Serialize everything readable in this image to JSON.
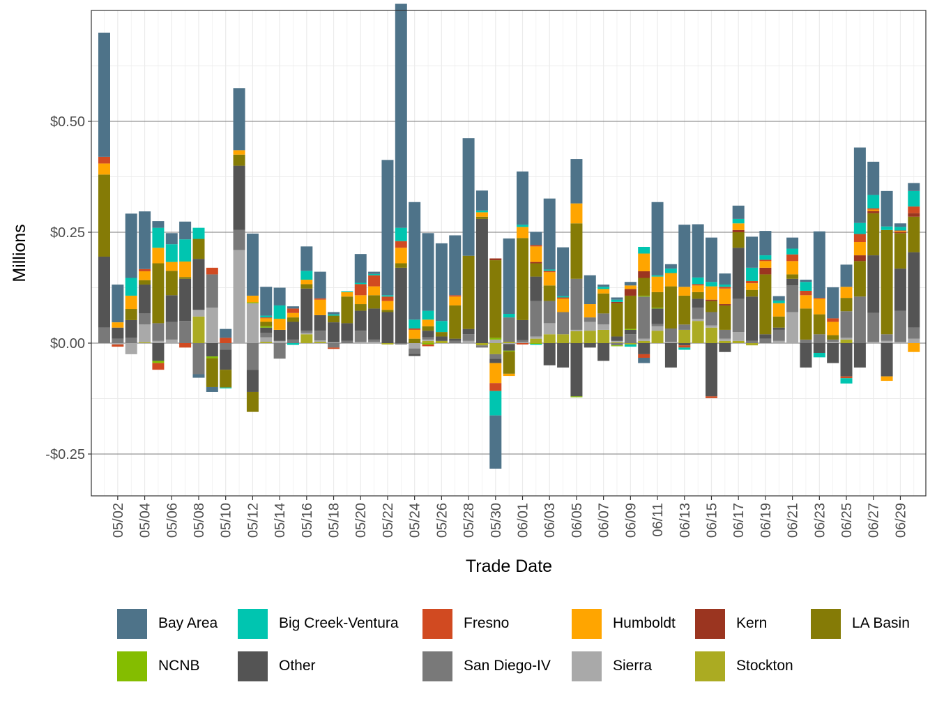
{
  "chart_data": {
    "type": "bar",
    "stacked": true,
    "title": "",
    "xlabel": "Trade Date",
    "ylabel": "Millions",
    "ylim": [
      -0.34,
      0.75
    ],
    "yticks": [
      -0.25,
      0.0,
      0.25,
      0.5
    ],
    "ytick_labels": [
      "-$0.25",
      "$0.00",
      "$0.25",
      "$0.50"
    ],
    "grid": true,
    "legend_position": "bottom",
    "xtick_labels": [
      "05/02",
      "05/04",
      "05/06",
      "05/08",
      "05/10",
      "05/12",
      "05/14",
      "05/16",
      "05/18",
      "05/20",
      "05/22",
      "05/24",
      "05/26",
      "05/28",
      "05/30",
      "06/01",
      "06/03",
      "06/05",
      "06/07",
      "06/09",
      "06/11",
      "06/13",
      "06/15",
      "06/17",
      "06/19",
      "06/21",
      "06/23",
      "06/25",
      "06/27",
      "06/29"
    ],
    "categories": [
      "05/01",
      "05/02",
      "05/03",
      "05/04",
      "05/05",
      "05/06",
      "05/07",
      "05/08",
      "05/09",
      "05/10",
      "05/11",
      "05/12",
      "05/13",
      "05/14",
      "05/15",
      "05/16",
      "05/17",
      "05/18",
      "05/19",
      "05/20",
      "05/21",
      "05/22",
      "05/23",
      "05/24",
      "05/25",
      "05/26",
      "05/27",
      "05/28",
      "05/29",
      "05/30",
      "05/31",
      "06/01",
      "06/02",
      "06/03",
      "06/04",
      "06/05",
      "06/06",
      "06/07",
      "06/08",
      "06/09",
      "06/10",
      "06/11",
      "06/12",
      "06/13",
      "06/14",
      "06/15",
      "06/16",
      "06/17",
      "06/18",
      "06/19",
      "06/20",
      "06/21",
      "06/22",
      "06/23",
      "06/24",
      "06/25",
      "06/26",
      "06/27",
      "06/28",
      "06/29",
      "06/30"
    ],
    "series": [
      {
        "name": "Bay Area",
        "color": "#4E7389",
        "values": [
          0.28,
          0.085,
          0.145,
          0.13,
          0.015,
          0.025,
          0.04,
          -0.008,
          -0.011,
          0.02,
          0.14,
          0.14,
          0.065,
          0.04,
          0.005,
          0.055,
          0.06,
          0.005,
          0,
          0.065,
          0.005,
          0.305,
          0.505,
          0.265,
          0.175,
          0.175,
          0.135,
          0.265,
          0.045,
          -0.12,
          0.17,
          0.12,
          0.03,
          0.16,
          0.11,
          0.1,
          0.065,
          0.005,
          0.005,
          0.008,
          -0.012,
          0.165,
          0.01,
          0.14,
          0.12,
          0.1,
          0.025,
          0.03,
          0.07,
          0.055,
          0.01,
          0.025,
          0.005,
          0.15,
          0.07,
          0.05,
          0.17,
          0.075,
          0.08,
          0.008,
          0.018
        ]
      },
      {
        "name": "Big Creek-Ventura",
        "color": "#00C5B0",
        "values": [
          0,
          0,
          0.04,
          0,
          0.045,
          0.04,
          0.05,
          0.025,
          0,
          -0.002,
          0,
          0,
          0.004,
          0.03,
          -0.004,
          0.02,
          0,
          0.003,
          0.002,
          0.003,
          0.003,
          0.003,
          0.03,
          0.02,
          0.02,
          0.025,
          0,
          0,
          0.004,
          -0.055,
          0.008,
          0.005,
          -0.002,
          0.003,
          0.003,
          0,
          0,
          0.005,
          0.005,
          -0.005,
          0.015,
          0.003,
          0.01,
          -0.005,
          0.015,
          0.01,
          0.005,
          0.01,
          0.03,
          0.01,
          0.006,
          0.013,
          0.02,
          -0.01,
          0,
          -0.012,
          0.025,
          0.03,
          0.008,
          0.008,
          0.035
        ]
      },
      {
        "name": "Fresno",
        "color": "#D14A21",
        "values": [
          0.015,
          -0.005,
          0,
          0.005,
          -0.015,
          0,
          -0.01,
          0,
          0.015,
          0.012,
          0,
          0,
          0.002,
          0,
          0.01,
          0,
          0.003,
          -0.003,
          0,
          0.025,
          0.025,
          0.01,
          0.015,
          0.003,
          -0.004,
          0,
          0.003,
          0,
          0,
          -0.018,
          0,
          -0.003,
          0.003,
          0.003,
          0.003,
          0,
          0,
          0,
          0,
          0,
          -0.008,
          0,
          0,
          -0.005,
          0.003,
          -0.004,
          0.004,
          0,
          0.005,
          0.003,
          0,
          0.015,
          0.01,
          0.002,
          0.008,
          -0.004,
          0.018,
          0.003,
          0,
          0.002,
          0.015
        ]
      },
      {
        "name": "Humboldt",
        "color": "#FFA500",
        "values": [
          0.025,
          0.012,
          0.03,
          0.02,
          0.035,
          0.02,
          0.035,
          0,
          0,
          0,
          0.01,
          0.015,
          0.008,
          0.025,
          0.01,
          0.01,
          0.035,
          0,
          0.01,
          0.02,
          0.02,
          0.02,
          0.035,
          0.02,
          0.015,
          0,
          0.02,
          0,
          0.01,
          -0.045,
          -0.005,
          0.025,
          0.035,
          0.03,
          0.03,
          0.045,
          0.03,
          0.01,
          0,
          0.008,
          0.04,
          0.035,
          0.03,
          0.02,
          0.015,
          0.03,
          0.035,
          0.015,
          0.015,
          0.015,
          0.03,
          0.03,
          0.03,
          0.035,
          0.03,
          0.025,
          0.03,
          0.003,
          -0.01,
          0.002,
          -0.02
        ]
      },
      {
        "name": "Kern",
        "color": "#9B3520",
        "values": [
          0,
          0,
          0,
          0,
          0,
          0,
          0,
          0,
          0,
          0,
          0,
          0,
          0,
          0,
          0,
          0,
          0,
          0,
          0,
          0,
          0,
          0,
          0,
          0,
          0,
          0,
          0,
          0,
          0,
          0.004,
          0,
          0,
          0.003,
          0,
          0,
          0,
          0,
          0,
          0.003,
          0.015,
          0.015,
          0,
          0,
          0,
          0,
          0.003,
          0.003,
          0.005,
          0,
          0.015,
          0,
          0,
          0,
          0,
          0,
          0,
          0.013,
          0.005,
          0,
          0.002,
          0.008
        ]
      },
      {
        "name": "LA Basin",
        "color": "#857B06",
        "values": [
          0.185,
          0,
          0.025,
          0.01,
          0.135,
          0.055,
          0.004,
          0.045,
          -0.065,
          -0.04,
          0.025,
          -0.045,
          0.01,
          0,
          0.01,
          0.01,
          0,
          0.015,
          0.06,
          0.015,
          0.03,
          0.005,
          0.01,
          0.01,
          0.01,
          0.01,
          0.075,
          0.165,
          0.005,
          0.175,
          -0.05,
          0.185,
          0.03,
          0.035,
          0,
          0.125,
          0,
          0.045,
          0.075,
          0.075,
          0.04,
          0.035,
          0.095,
          0.065,
          0.015,
          0.025,
          0.055,
          0.035,
          0.015,
          0.135,
          0.025,
          0.01,
          0.07,
          0.045,
          0.01,
          0.03,
          0.08,
          0.095,
          0.235,
          0.08,
          0.08
        ]
      },
      {
        "name": "NCNB",
        "color": "#84BD00",
        "values": [
          0,
          0,
          0,
          0,
          -0.005,
          0,
          0,
          0,
          -0.004,
          0,
          0,
          0.002,
          0.003,
          0,
          0,
          0,
          0,
          0,
          0,
          0,
          0,
          0,
          0,
          0,
          -0.003,
          0,
          0,
          0,
          0,
          0.004,
          -0.002,
          0,
          -0.002,
          0,
          0,
          -0.002,
          0,
          0,
          -0.002,
          0.002,
          0.002,
          0.002,
          0,
          0,
          0,
          0,
          0,
          0,
          0,
          0,
          0,
          0,
          0,
          0,
          0,
          0,
          0,
          0,
          0,
          0,
          0
        ]
      },
      {
        "name": "Other",
        "color": "#545454",
        "values": [
          0.16,
          0.025,
          0.04,
          0.065,
          -0.04,
          0.06,
          0.095,
          0.115,
          -0.03,
          -0.045,
          0.145,
          -0.05,
          0.012,
          0.025,
          0.04,
          0.095,
          0.035,
          0.045,
          0.04,
          0.045,
          0.07,
          0.07,
          0.17,
          -0.005,
          0.015,
          0.01,
          0.005,
          0.012,
          0.28,
          -0.01,
          -0.015,
          0.045,
          0.055,
          -0.05,
          -0.055,
          -0.12,
          -0.01,
          -0.04,
          0.01,
          0.01,
          -0.025,
          0.035,
          -0.055,
          -0.005,
          0.02,
          -0.12,
          -0.02,
          0.115,
          0.1,
          0.01,
          0.005,
          0.015,
          -0.055,
          -0.022,
          -0.045,
          -0.075,
          -0.055,
          0.13,
          -0.075,
          0.095,
          0.17
        ]
      },
      {
        "name": "San Diego-IV",
        "color": "#797979",
        "values": [
          0.035,
          0.01,
          0.012,
          0.025,
          0.04,
          0.04,
          0.05,
          -0.07,
          0.075,
          -0.015,
          0.045,
          -0.06,
          0.01,
          -0.035,
          0.008,
          0.005,
          0.022,
          -0.01,
          0.005,
          0.025,
          0.005,
          0,
          -0.003,
          -0.012,
          0.005,
          0,
          0.005,
          0.015,
          -0.005,
          -0.01,
          0.055,
          0.005,
          0.08,
          0.05,
          0.05,
          0.115,
          0.01,
          0.025,
          -0.005,
          0.02,
          0.095,
          0.005,
          0.03,
          0.012,
          0.025,
          0.03,
          0.02,
          0.075,
          0.005,
          0.01,
          0.025,
          0.06,
          0.008,
          0.02,
          0.005,
          0.06,
          0.105,
          0.065,
          0.015,
          0.07,
          0.025
        ]
      },
      {
        "name": "Sierra",
        "color": "#A9A9A9",
        "values": [
          0,
          -0.003,
          -0.025,
          0.04,
          0.005,
          0.008,
          0,
          0.015,
          0.08,
          0,
          0.21,
          0.09,
          0.01,
          0.005,
          0,
          0.003,
          0.003,
          0.002,
          0,
          0.003,
          0.003,
          0,
          0,
          -0.012,
          0.003,
          0,
          0,
          0.005,
          0,
          0.008,
          -0.002,
          0.002,
          0.005,
          0.025,
          0,
          0.003,
          0.02,
          0.012,
          0.003,
          0,
          0.005,
          0.01,
          0.003,
          0,
          0.005,
          0.005,
          0.005,
          0.02,
          0,
          0,
          0.005,
          0.07,
          0,
          0,
          0.003,
          0.004,
          0,
          0.003,
          0.005,
          0.003,
          0.01
        ]
      },
      {
        "name": "Stockton",
        "color": "#ABAB22",
        "values": [
          0,
          0,
          0,
          0.002,
          0,
          0,
          0,
          0.06,
          0,
          0,
          0,
          0,
          0.003,
          0,
          0,
          0.02,
          0.003,
          0,
          0,
          0,
          0,
          -0.003,
          0,
          0,
          0.005,
          0.005,
          0,
          0,
          -0.005,
          -0.025,
          0.003,
          0,
          0.01,
          0.02,
          0.02,
          0.027,
          0.028,
          0.03,
          0.002,
          -0.003,
          0.005,
          0.028,
          0,
          0.03,
          0.05,
          0.035,
          0.005,
          0.005,
          -0.005,
          0,
          0,
          0,
          0,
          0,
          0,
          0.008,
          0,
          0,
          0,
          0,
          0
        ]
      }
    ]
  },
  "legend": {
    "items": [
      {
        "label": "Bay Area",
        "color": "#4E7389"
      },
      {
        "label": "Big Creek-Ventura",
        "color": "#00C5B0"
      },
      {
        "label": "Fresno",
        "color": "#D14A21"
      },
      {
        "label": "Humboldt",
        "color": "#FFA500"
      },
      {
        "label": "Kern",
        "color": "#9B3520"
      },
      {
        "label": "LA Basin",
        "color": "#857B06"
      },
      {
        "label": "NCNB",
        "color": "#84BD00"
      },
      {
        "label": "Other",
        "color": "#545454"
      },
      {
        "label": "San Diego-IV",
        "color": "#797979"
      },
      {
        "label": "Sierra",
        "color": "#A9A9A9"
      },
      {
        "label": "Stockton",
        "color": "#ABAB22"
      }
    ]
  }
}
